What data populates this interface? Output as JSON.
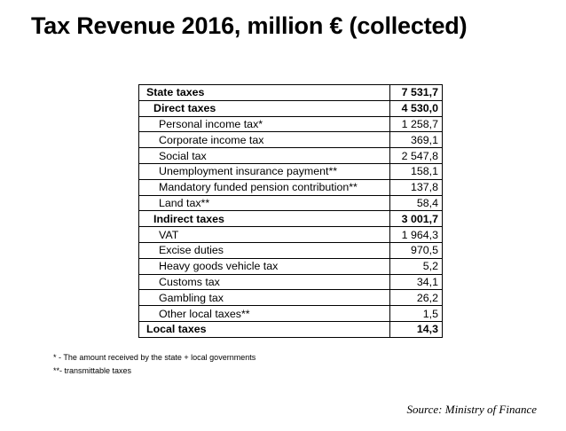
{
  "title": "Tax Revenue 2016, million € (collected)",
  "table": {
    "rows": [
      {
        "label": "State taxes",
        "value": "7 531,7",
        "level": 0,
        "bold": true
      },
      {
        "label": "Direct taxes",
        "value": "4 530,0",
        "level": 1,
        "bold": true
      },
      {
        "label": "Personal income tax*",
        "value": "1 258,7",
        "level": 2,
        "bold": false
      },
      {
        "label": "Corporate income tax",
        "value": "369,1",
        "level": 2,
        "bold": false
      },
      {
        "label": "Social tax",
        "value": "2 547,8",
        "level": 2,
        "bold": false
      },
      {
        "label": "Unemployment insurance payment**",
        "value": "158,1",
        "level": 2,
        "bold": false
      },
      {
        "label": "Mandatory funded pension contribution**",
        "value": "137,8",
        "level": 2,
        "bold": false
      },
      {
        "label": "Land tax**",
        "value": "58,4",
        "level": 2,
        "bold": false
      },
      {
        "label": "Indirect taxes",
        "value": "3 001,7",
        "level": 1,
        "bold": true
      },
      {
        "label": "VAT",
        "value": "1 964,3",
        "level": 2,
        "bold": false
      },
      {
        "label": "Excise duties",
        "value": "970,5",
        "level": 2,
        "bold": false
      },
      {
        "label": "Heavy goods vehicle tax",
        "value": "5,2",
        "level": 2,
        "bold": false
      },
      {
        "label": "Customs tax",
        "value": "34,1",
        "level": 2,
        "bold": false
      },
      {
        "label": "Gambling tax",
        "value": "26,2",
        "level": 2,
        "bold": false
      },
      {
        "label": "Other local taxes**",
        "value": "1,5",
        "level": 2,
        "bold": false
      },
      {
        "label": "Local taxes",
        "value": "14,3",
        "level": 0,
        "bold": true
      }
    ]
  },
  "footnotes": {
    "note1": "* - The amount received by the state + local governments",
    "note2": "**- transmittable taxes"
  },
  "source": "Source: Ministry of Finance"
}
